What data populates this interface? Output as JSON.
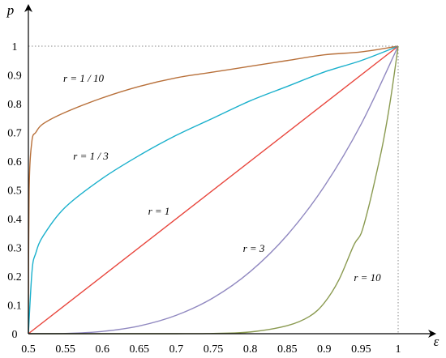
{
  "chart_data": {
    "type": "line",
    "xlabel": "ε",
    "ylabel": "p",
    "xlim": [
      0.5,
      1.0
    ],
    "ylim": [
      0,
      1.0
    ],
    "x_ticks": [
      "0.5",
      "0.55",
      "0.6",
      "0.65",
      "0.7",
      "0.75",
      "0.8",
      "0.85",
      "0.9",
      "0.95",
      "1"
    ],
    "y_ticks": [
      "0",
      "0.1",
      "0.2",
      "0.3",
      "0.4",
      "0.5",
      "0.6",
      "0.7",
      "0.8",
      "0.9",
      "1"
    ],
    "grid": false,
    "reference_lines": "dotted at p = 1 and ε = 1",
    "series": [
      {
        "label": "r = 1 / 10",
        "color": "#b8703a",
        "x": [
          0.5,
          0.501,
          0.505,
          0.51,
          0.52,
          0.55,
          0.6,
          0.65,
          0.7,
          0.75,
          0.8,
          0.85,
          0.9,
          0.95,
          1.0
        ],
        "y": [
          0,
          0.5,
          0.675,
          0.7,
          0.73,
          0.77,
          0.82,
          0.86,
          0.89,
          0.91,
          0.93,
          0.95,
          0.97,
          0.98,
          1.0
        ]
      },
      {
        "label": "r = 1 / 3",
        "color": "#1ab0cc",
        "x": [
          0.5,
          0.505,
          0.51,
          0.52,
          0.55,
          0.6,
          0.65,
          0.7,
          0.75,
          0.8,
          0.85,
          0.9,
          0.95,
          1.0
        ],
        "y": [
          0,
          0.22,
          0.28,
          0.34,
          0.44,
          0.54,
          0.62,
          0.69,
          0.75,
          0.81,
          0.86,
          0.91,
          0.95,
          1.0
        ]
      },
      {
        "label": "r = 1",
        "color": "#e8453c",
        "x": [
          0.5,
          1.0
        ],
        "y": [
          0,
          1.0
        ]
      },
      {
        "label": "r = 3",
        "color": "#9088c0",
        "x": [
          0.5,
          0.55,
          0.6,
          0.65,
          0.7,
          0.75,
          0.8,
          0.85,
          0.9,
          0.95,
          1.0
        ],
        "y": [
          0,
          0.001,
          0.008,
          0.027,
          0.064,
          0.125,
          0.216,
          0.343,
          0.512,
          0.729,
          1.0
        ]
      },
      {
        "label": "r = 10",
        "color": "#8a9a50",
        "x": [
          0.5,
          0.6,
          0.7,
          0.75,
          0.8,
          0.85,
          0.88,
          0.9,
          0.92,
          0.94,
          0.95,
          0.96,
          0.97,
          0.98,
          0.99,
          1.0
        ],
        "y": [
          0,
          0.0,
          0.0,
          0.001,
          0.006,
          0.028,
          0.06,
          0.107,
          0.188,
          0.308,
          0.349,
          0.44,
          0.55,
          0.67,
          0.82,
          1.0
        ]
      }
    ]
  }
}
